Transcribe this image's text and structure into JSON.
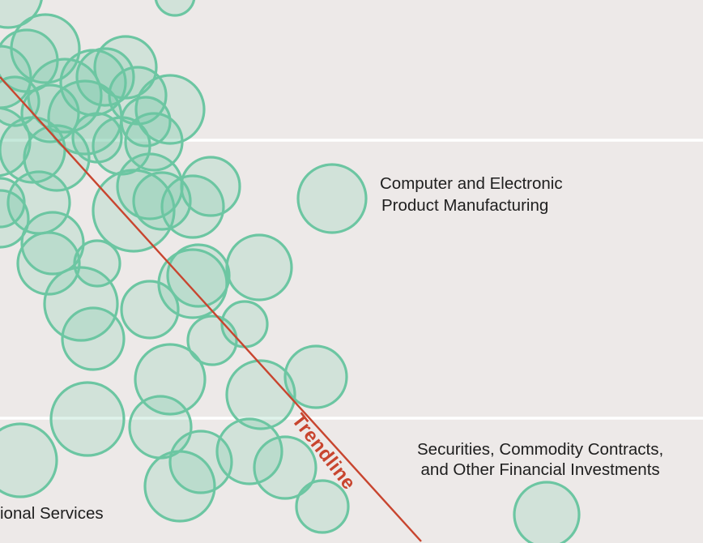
{
  "chart_data": {
    "type": "scatter",
    "title": "",
    "xlabel": "",
    "ylabel": "",
    "grid": true,
    "trendline_label": "Trendline",
    "annotations": [
      {
        "id": "computer",
        "lines": [
          "Computer and Electronic",
          "Product Manufacturing"
        ]
      },
      {
        "id": "securities",
        "lines": [
          "Securities, Commodity Contracts,",
          "and Other Financial Investments"
        ]
      },
      {
        "id": "professional",
        "lines": [
          "ional Services"
        ]
      }
    ],
    "colors": {
      "bubble_stroke": "#6cc6a2",
      "bubble_fill": "#d3e7e0",
      "trendline": "#c8452f",
      "background": "#ede9e8",
      "grid": "#ffffff"
    }
  }
}
